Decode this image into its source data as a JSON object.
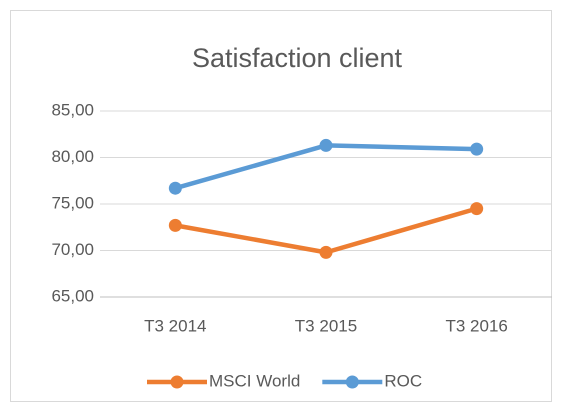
{
  "chart_data": {
    "type": "line",
    "title": "Satisfaction client",
    "categories": [
      "T3 2014",
      "T3 2015",
      "T3 2016"
    ],
    "series": [
      {
        "name": "MSCI World",
        "color": "#ed7d31",
        "values": [
          72.7,
          69.8,
          74.5
        ]
      },
      {
        "name": "ROC",
        "color": "#5b9bd5",
        "values": [
          76.7,
          81.3,
          80.9
        ]
      }
    ],
    "ylim": [
      65,
      85
    ],
    "yticks": [
      {
        "value": 65,
        "label": "65,00"
      },
      {
        "value": 70,
        "label": "70,00"
      },
      {
        "value": 75,
        "label": "75,00"
      },
      {
        "value": 80,
        "label": "80,00"
      },
      {
        "value": 85,
        "label": "85,00"
      }
    ],
    "grid": true,
    "legend": "bottom"
  }
}
